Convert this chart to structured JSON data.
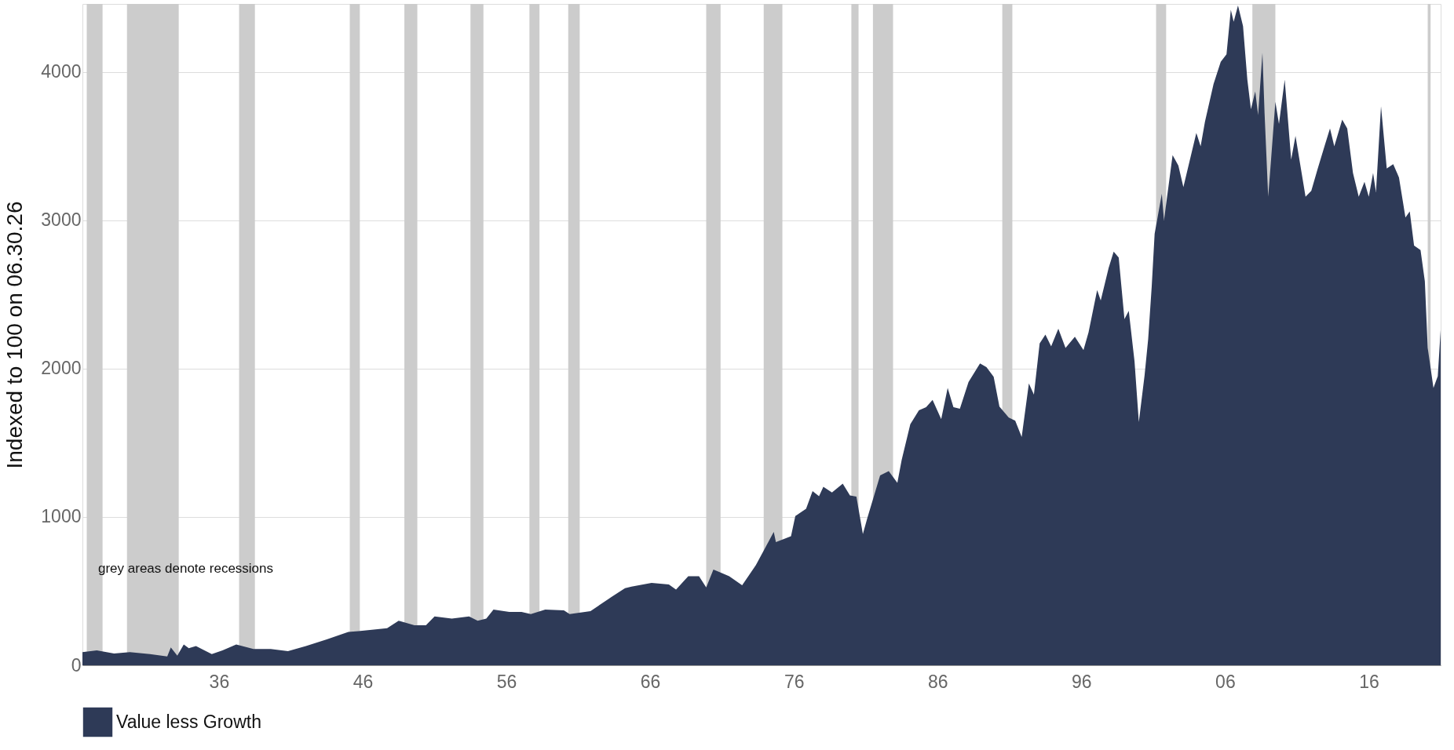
{
  "chart_data": {
    "type": "area",
    "ylabel": "Indexed to 100 on 06.30.26",
    "xlim": [
      1926.5,
      2021.0
    ],
    "ylim": [
      0,
      4460
    ],
    "xticks": [
      {
        "value": 1936,
        "label": "36"
      },
      {
        "value": 1946,
        "label": "46"
      },
      {
        "value": 1956,
        "label": "56"
      },
      {
        "value": 1966,
        "label": "66"
      },
      {
        "value": 1976,
        "label": "76"
      },
      {
        "value": 1986,
        "label": "86"
      },
      {
        "value": 1996,
        "label": "96"
      },
      {
        "value": 2006,
        "label": "06"
      },
      {
        "value": 2016,
        "label": "16"
      }
    ],
    "yticks": [
      0,
      1000,
      2000,
      3000,
      4000
    ],
    "grid": "y",
    "legend": "bottom",
    "annotations": [
      "grey areas denote recessions"
    ],
    "bands": [
      {
        "axis": "x",
        "from": 1926.8,
        "to": 1927.9,
        "color": "#cccccc"
      },
      {
        "axis": "x",
        "from": 1929.6,
        "to": 1933.2,
        "color": "#cccccc"
      },
      {
        "axis": "x",
        "from": 1937.4,
        "to": 1938.5,
        "color": "#cccccc"
      },
      {
        "axis": "x",
        "from": 1945.1,
        "to": 1945.8,
        "color": "#cccccc"
      },
      {
        "axis": "x",
        "from": 1948.9,
        "to": 1949.8,
        "color": "#cccccc"
      },
      {
        "axis": "x",
        "from": 1953.5,
        "to": 1954.4,
        "color": "#cccccc"
      },
      {
        "axis": "x",
        "from": 1957.6,
        "to": 1958.3,
        "color": "#cccccc"
      },
      {
        "axis": "x",
        "from": 1960.3,
        "to": 1961.1,
        "color": "#cccccc"
      },
      {
        "axis": "x",
        "from": 1969.9,
        "to": 1970.9,
        "color": "#cccccc"
      },
      {
        "axis": "x",
        "from": 1973.9,
        "to": 1975.2,
        "color": "#cccccc"
      },
      {
        "axis": "x",
        "from": 1980.0,
        "to": 1980.5,
        "color": "#cccccc"
      },
      {
        "axis": "x",
        "from": 1981.5,
        "to": 1982.9,
        "color": "#cccccc"
      },
      {
        "axis": "x",
        "from": 1990.5,
        "to": 1991.2,
        "color": "#cccccc"
      },
      {
        "axis": "x",
        "from": 2001.2,
        "to": 2001.9,
        "color": "#cccccc"
      },
      {
        "axis": "x",
        "from": 2007.9,
        "to": 2009.5,
        "color": "#cccccc"
      },
      {
        "axis": "x",
        "from": 2020.1,
        "to": 2020.3,
        "color": "#cccccc"
      }
    ],
    "x": [
      1926.5,
      1927.5,
      1928.7,
      1929.8,
      1931.2,
      1932.4,
      1932.65,
      1933.1,
      1933.55,
      1933.9,
      1934.4,
      1935.5,
      1936.25,
      1937.2,
      1938.4,
      1939.6,
      1940.8,
      1942.05,
      1943.5,
      1945.0,
      1945.7,
      1947.7,
      1948.5,
      1949.6,
      1950.4,
      1951.0,
      1952.2,
      1953.4,
      1954.0,
      1954.6,
      1955.1,
      1956.2,
      1957.05,
      1957.7,
      1958.7,
      1960.0,
      1960.4,
      1961.85,
      1963.3,
      1964.25,
      1964.7,
      1966.1,
      1967.3,
      1967.8,
      1968.65,
      1969.4,
      1969.9,
      1970.4,
      1970.8,
      1971.5,
      1972.4,
      1973.35,
      1974.05,
      1974.6,
      1974.75,
      1975.8,
      1976.1,
      1976.85,
      1977.3,
      1977.75,
      1978.05,
      1978.65,
      1979.4,
      1979.9,
      1980.35,
      1980.8,
      1981.1,
      1982.0,
      1982.6,
      1983.2,
      1983.5,
      1984.1,
      1984.7,
      1985.2,
      1985.65,
      1986.25,
      1986.7,
      1987.1,
      1987.55,
      1988.15,
      1988.95,
      1989.4,
      1989.9,
      1990.3,
      1990.95,
      1991.4,
      1991.85,
      1992.35,
      1992.7,
      1993.1,
      1993.5,
      1993.9,
      1994.4,
      1994.9,
      1995.55,
      1996.15,
      1996.5,
      1997.1,
      1997.35,
      1997.9,
      1998.25,
      1998.6,
      1999.0,
      1999.3,
      1999.7,
      2000.0,
      2000.4,
      2000.65,
      2000.9,
      2001.1,
      2001.6,
      2001.75,
      2002.35,
      2002.75,
      2003.1,
      2004.0,
      2004.3,
      2004.6,
      2005.2,
      2005.7,
      2006.1,
      2006.4,
      2006.6,
      2006.9,
      2007.25,
      2007.55,
      2007.8,
      2008.1,
      2008.3,
      2008.6,
      2008.75,
      2009.0,
      2009.2,
      2009.5,
      2009.75,
      2010.15,
      2010.6,
      2010.9,
      2011.6,
      2012.0,
      2012.45,
      2012.95,
      2013.3,
      2013.6,
      2014.15,
      2014.5,
      2014.9,
      2015.3,
      2015.7,
      2016.0,
      2016.3,
      2016.5,
      2016.85,
      2017.25,
      2017.7,
      2018.1,
      2018.55,
      2018.85,
      2019.15,
      2019.6,
      2019.9,
      2020.1,
      2020.5,
      2020.8,
      2021.0
    ],
    "series": [
      {
        "name": "Value less Growth",
        "color": "#2e3a57",
        "values": [
          88,
          100,
          80,
          88,
          75,
          60,
          120,
          65,
          140,
          115,
          130,
          75,
          100,
          140,
          110,
          110,
          95,
          130,
          175,
          225,
          230,
          250,
          300,
          270,
          270,
          330,
          315,
          330,
          300,
          315,
          375,
          360,
          360,
          345,
          375,
          370,
          345,
          365,
          460,
          520,
          530,
          555,
          545,
          510,
          600,
          600,
          525,
          645,
          630,
          600,
          540,
          675,
          800,
          900,
          830,
          870,
          1006,
          1055,
          1175,
          1140,
          1203,
          1165,
          1225,
          1145,
          1137,
          885,
          990,
          1280,
          1310,
          1230,
          1385,
          1625,
          1720,
          1740,
          1790,
          1660,
          1870,
          1740,
          1730,
          1910,
          2035,
          2010,
          1945,
          1745,
          1670,
          1650,
          1540,
          1900,
          1825,
          2170,
          2230,
          2150,
          2270,
          2140,
          2215,
          2125,
          2245,
          2530,
          2460,
          2680,
          2790,
          2750,
          2335,
          2390,
          2050,
          1640,
          1955,
          2200,
          2560,
          2910,
          3180,
          3000,
          3440,
          3370,
          3225,
          3590,
          3500,
          3665,
          3920,
          4070,
          4120,
          4420,
          4340,
          4450,
          4310,
          3950,
          3750,
          3870,
          3710,
          4130,
          3720,
          3160,
          3410,
          3800,
          3650,
          3950,
          3410,
          3570,
          3160,
          3200,
          3350,
          3510,
          3620,
          3500,
          3680,
          3620,
          3320,
          3160,
          3260,
          3160,
          3320,
          3190,
          3770,
          3350,
          3380,
          3290,
          3020,
          3060,
          2830,
          2800,
          2590,
          2140,
          1870,
          1950,
          2260
        ]
      }
    ]
  }
}
